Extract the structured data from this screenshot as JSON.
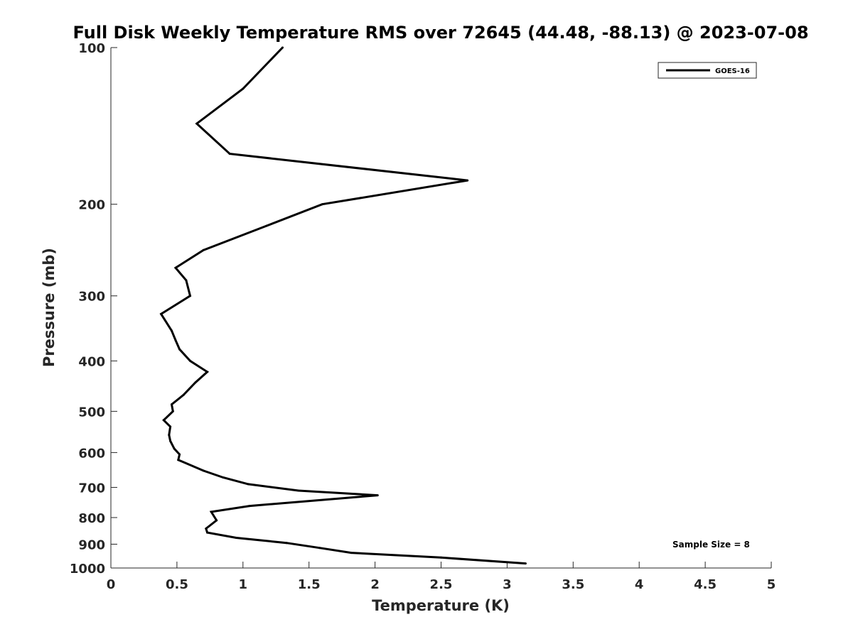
{
  "chart_data": {
    "type": "line",
    "title": "Full Disk Weekly Temperature RMS over 72645 (44.48, -88.13) @ 2023-07-08",
    "xlabel": "Temperature (K)",
    "ylabel": "Pressure (mb)",
    "xlim": [
      0,
      5
    ],
    "ylim": [
      100,
      1000
    ],
    "y_scale": "log",
    "y_reversed": true,
    "x_ticks": [
      0,
      0.5,
      1,
      1.5,
      2,
      2.5,
      3,
      3.5,
      4,
      4.5,
      5
    ],
    "x_tick_labels": [
      "0",
      "0.5",
      "1",
      "1.5",
      "2",
      "2.5",
      "3",
      "3.5",
      "4",
      "4.5",
      "5"
    ],
    "y_ticks": [
      100,
      200,
      300,
      400,
      500,
      600,
      700,
      800,
      900,
      1000
    ],
    "y_tick_labels": [
      "100",
      "200",
      "300",
      "400",
      "500",
      "600",
      "700",
      "800",
      "900",
      "1000"
    ],
    "grid": false,
    "legend_position": "top-right",
    "annotation": "Sample Size = 8",
    "series": [
      {
        "name": "GOES-16",
        "color": "#000000",
        "x": [
          1.3,
          1.0,
          0.65,
          0.9,
          2.7,
          1.6,
          1.18,
          0.7,
          0.49,
          0.57,
          0.6,
          0.38,
          0.46,
          0.49,
          0.52,
          0.6,
          0.73,
          0.64,
          0.55,
          0.46,
          0.47,
          0.4,
          0.45,
          0.44,
          0.45,
          0.48,
          0.52,
          0.51,
          0.7,
          0.85,
          1.04,
          1.42,
          2.02,
          1.05,
          0.76,
          0.8,
          0.72,
          0.73,
          0.95,
          1.33,
          1.58,
          1.82,
          2.5,
          3.14
        ],
        "y": [
          100,
          120,
          140,
          160,
          180,
          200,
          220,
          245,
          265,
          280,
          300,
          325,
          350,
          365,
          380,
          400,
          420,
          440,
          465,
          485,
          500,
          520,
          535,
          555,
          570,
          590,
          605,
          620,
          650,
          670,
          690,
          710,
          725,
          760,
          780,
          810,
          840,
          855,
          875,
          895,
          915,
          935,
          955,
          980
        ]
      }
    ]
  }
}
